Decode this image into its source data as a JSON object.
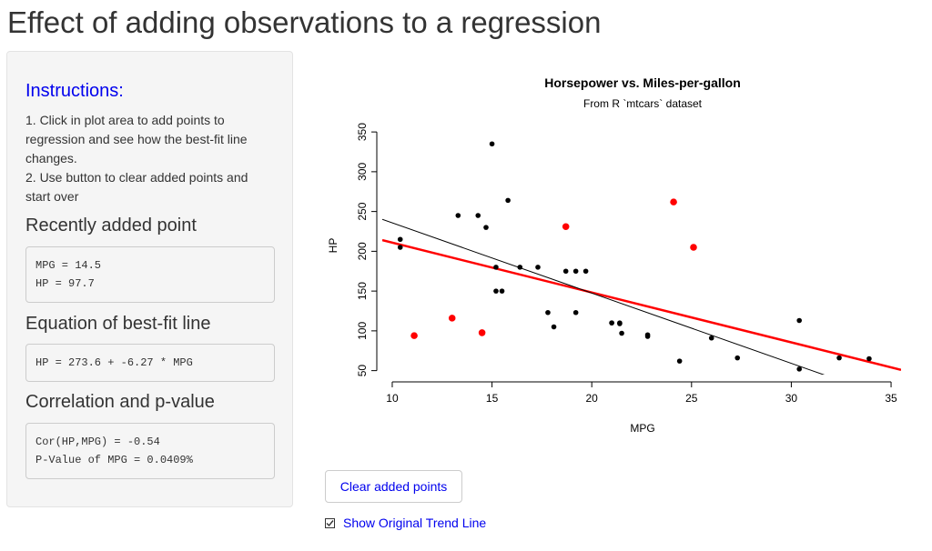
{
  "page": {
    "title": "Effect of adding observations to a regression"
  },
  "sidebar": {
    "instructions_heading": "Instructions:",
    "instruction_lines": [
      "1. Click in plot area to add points to",
      "regression and see how the best-fit line",
      "changes.",
      "2. Use button to clear added points and",
      "start over"
    ],
    "recent_point": {
      "heading": "Recently added point",
      "lines": [
        "MPG = 14.5",
        "HP = 97.7"
      ]
    },
    "equation": {
      "heading": "Equation of best-fit line",
      "lines": [
        "HP = 273.6 + -6.27 * MPG"
      ]
    },
    "correlation": {
      "heading": "Correlation and p-value",
      "lines": [
        "Cor(HP,MPG) = -0.54",
        "P-Value of MPG = 0.0409%"
      ]
    }
  },
  "controls": {
    "clear_button_label": "Clear added points",
    "checkbox_label": "Show Original Trend Line",
    "checkbox_checked": true
  },
  "colors": {
    "link": "#0000ee",
    "added_points": "#ff0000",
    "original_points": "#000000"
  },
  "chart_data": {
    "type": "scatter",
    "title": "Horsepower vs. Miles-per-gallon",
    "subtitle": "From R `mtcars` dataset",
    "xlabel": "MPG",
    "ylabel": "HP",
    "xlim": [
      9.5,
      35.5
    ],
    "ylim": [
      45,
      365
    ],
    "xticks": [
      10,
      15,
      20,
      25,
      30,
      35
    ],
    "yticks": [
      50,
      100,
      150,
      200,
      250,
      300,
      350
    ],
    "series": [
      {
        "color": "#000000",
        "x": [
          21.0,
          21.0,
          22.8,
          21.4,
          18.7,
          18.1,
          14.3,
          24.4,
          22.8,
          19.2,
          17.8,
          16.4,
          17.3,
          15.2,
          10.4,
          10.4,
          14.7,
          32.4,
          30.4,
          33.9,
          21.5,
          15.5,
          15.2,
          13.3,
          19.2,
          27.3,
          26.0,
          30.4,
          15.8,
          19.7,
          15.0,
          21.4
        ],
        "y": [
          110,
          110,
          93,
          110,
          175,
          105,
          245,
          62,
          95,
          123,
          123,
          180,
          180,
          180,
          205,
          215,
          230,
          66,
          52,
          65,
          97,
          150,
          150,
          245,
          175,
          66,
          91,
          113,
          264,
          175,
          335,
          109
        ]
      },
      {
        "color": "#ff0000",
        "x": [
          11.1,
          13.0,
          14.5,
          18.7,
          24.1,
          25.1
        ],
        "y": [
          94,
          116,
          97.7,
          231,
          262,
          205
        ]
      }
    ],
    "lines": [
      {
        "label": "best-fit",
        "color": "#ff0000",
        "intercept": 273.6,
        "slope": -6.27
      },
      {
        "label": "original trend",
        "color": "#000000",
        "intercept": 324.08,
        "slope": -8.83
      }
    ]
  }
}
